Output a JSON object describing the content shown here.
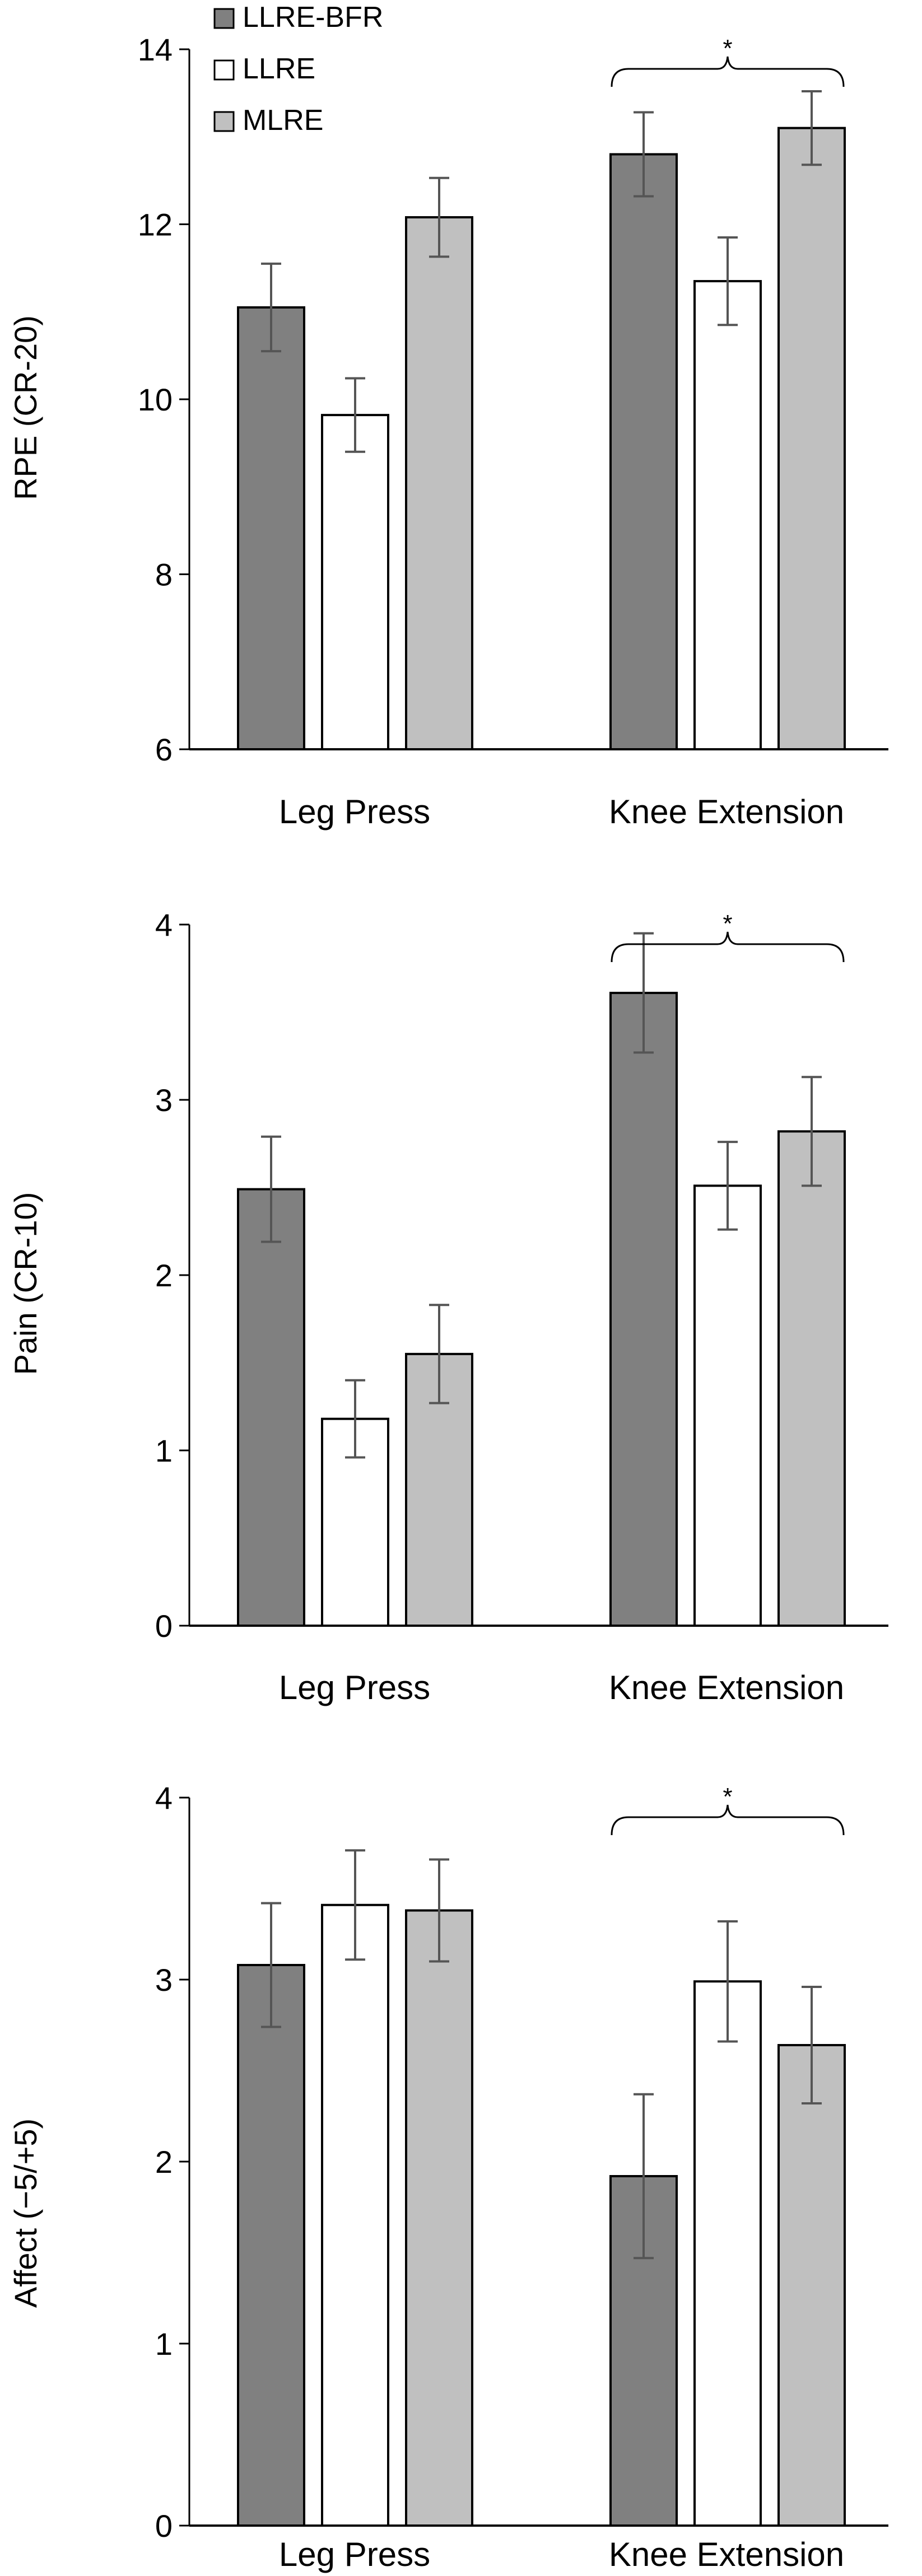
{
  "colors": {
    "llre_bfr": "#808080",
    "llre": "#ffffff",
    "mlre": "#c0c0c0",
    "bar_stroke": "#000000",
    "axis": "#000000",
    "error_bar": "#555555",
    "bracket": "#000000"
  },
  "legend": {
    "position": "top-left",
    "items": [
      {
        "label": "LLRE-BFR",
        "color": "#808080"
      },
      {
        "label": "LLRE",
        "color": "#ffffff"
      },
      {
        "label": "MLRE",
        "color": "#c0c0c0"
      }
    ]
  },
  "chart_data": [
    {
      "type": "bar",
      "ylabel": "RPE (CR-20)",
      "ylim": [
        6,
        14
      ],
      "yticks": [
        6,
        8,
        10,
        12,
        14
      ],
      "categories": [
        "Leg Press",
        "Knee Extension"
      ],
      "series": [
        {
          "name": "LLRE-BFR",
          "values": [
            11.05,
            12.8
          ],
          "errors": [
            0.5,
            0.48
          ]
        },
        {
          "name": "LLRE",
          "values": [
            9.82,
            11.35
          ],
          "errors": [
            0.42,
            0.5
          ]
        },
        {
          "name": "MLRE",
          "values": [
            12.08,
            13.1
          ],
          "errors": [
            0.45,
            0.42
          ]
        }
      ],
      "significance": {
        "category": "Knee Extension",
        "symbol": "*"
      }
    },
    {
      "type": "bar",
      "ylabel": "Pain (CR-10)",
      "ylim": [
        0,
        4
      ],
      "yticks": [
        0,
        1,
        2,
        3,
        4
      ],
      "categories": [
        "Leg Press",
        "Knee Extension"
      ],
      "series": [
        {
          "name": "LLRE-BFR",
          "values": [
            2.49,
            3.61
          ],
          "errors": [
            0.3,
            0.34
          ]
        },
        {
          "name": "LLRE",
          "values": [
            1.18,
            2.51
          ],
          "errors": [
            0.22,
            0.25
          ]
        },
        {
          "name": "MLRE",
          "values": [
            1.55,
            2.82
          ],
          "errors": [
            0.28,
            0.31
          ]
        }
      ],
      "significance": {
        "category": "Knee Extension",
        "symbol": "*"
      }
    },
    {
      "type": "bar",
      "ylabel": "Affect (−5/+5)",
      "ylim": [
        0,
        4
      ],
      "yticks": [
        0,
        1,
        2,
        3,
        4
      ],
      "categories": [
        "Leg Press",
        "Knee Extension"
      ],
      "series": [
        {
          "name": "LLRE-BFR",
          "values": [
            3.08,
            1.92
          ],
          "errors": [
            0.34,
            0.45
          ]
        },
        {
          "name": "LLRE",
          "values": [
            3.41,
            2.99
          ],
          "errors": [
            0.3,
            0.33
          ]
        },
        {
          "name": "MLRE",
          "values": [
            3.38,
            2.64
          ],
          "errors": [
            0.28,
            0.32
          ]
        }
      ],
      "significance": {
        "category": "Knee Extension",
        "symbol": "*"
      }
    }
  ]
}
